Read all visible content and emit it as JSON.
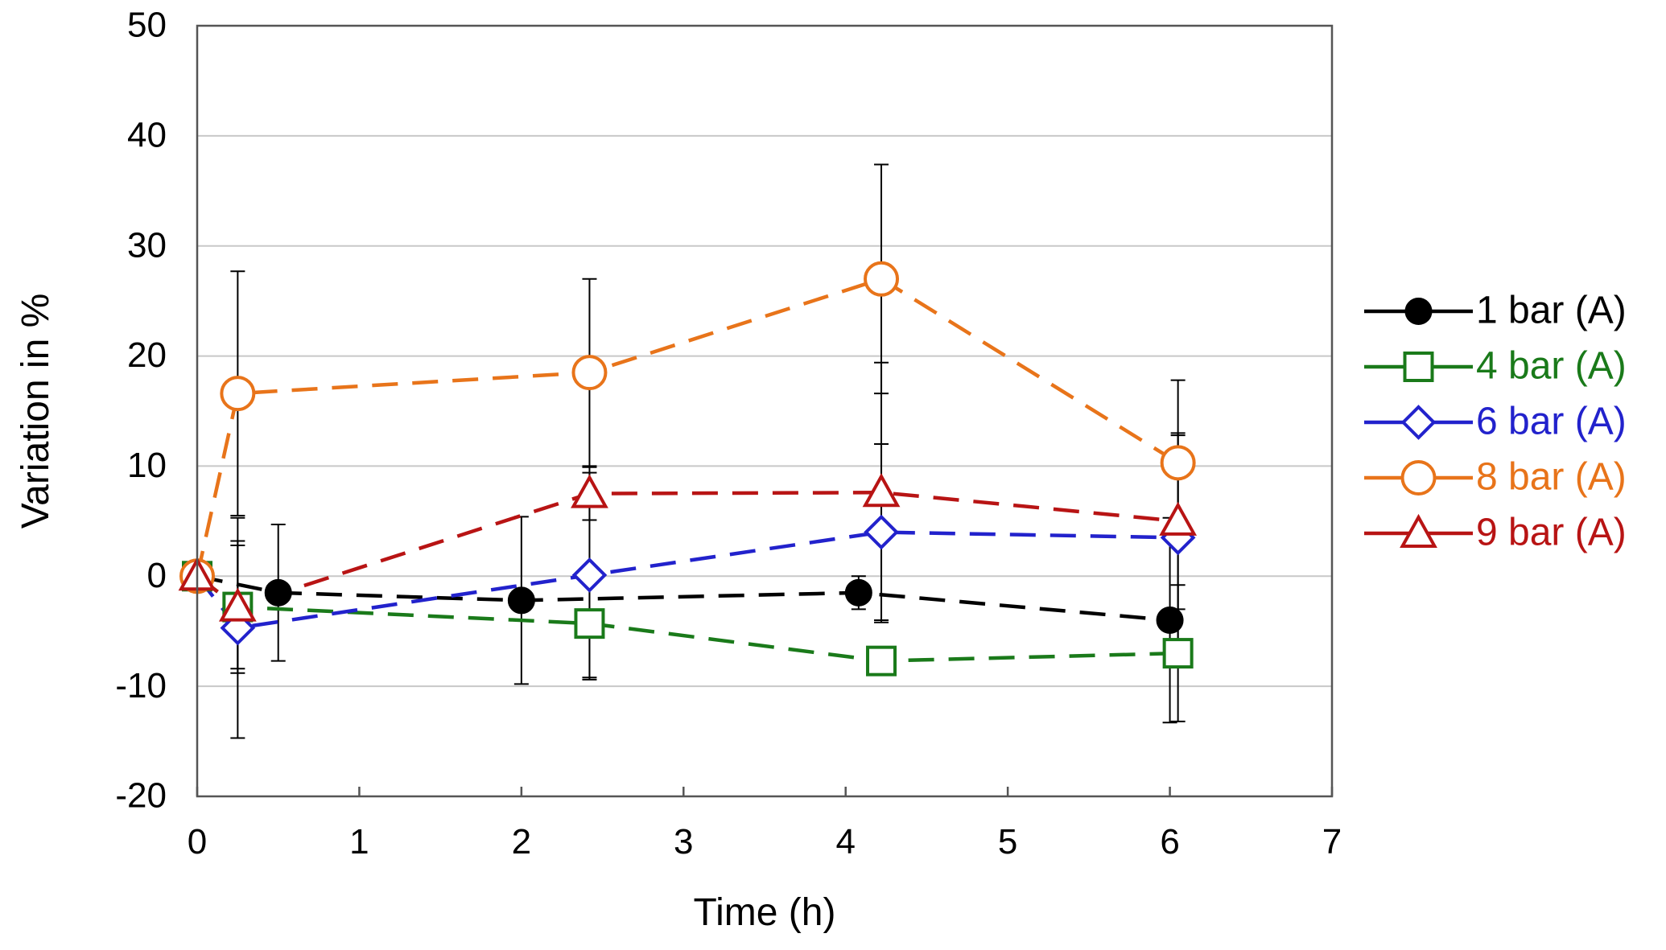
{
  "chart_data": {
    "type": "line",
    "title": "",
    "xlabel": "Time (h)",
    "ylabel": "Variation in %",
    "xlim": [
      0,
      7
    ],
    "ylim": [
      -20,
      50
    ],
    "xticks": [
      0,
      1,
      2,
      3,
      4,
      5,
      6,
      7
    ],
    "yticks": [
      -20,
      -10,
      0,
      10,
      20,
      30,
      40,
      50
    ],
    "grid": "horizontal",
    "legend_position": "right",
    "series": [
      {
        "name": "1 bar (A)",
        "color": "#000000",
        "marker": "circle-filled",
        "x": [
          0,
          0.5,
          2.0,
          4.08,
          6.0
        ],
        "y": [
          0,
          -1.5,
          -2.2,
          -1.5,
          -4.0
        ],
        "err": [
          0,
          6.2,
          7.6,
          1.5,
          9.3
        ]
      },
      {
        "name": "4 bar (A)",
        "color": "#1a7a1a",
        "marker": "square-open",
        "x": [
          0,
          0.25,
          2.42,
          4.22,
          6.05
        ],
        "y": [
          0,
          -2.8,
          -4.3,
          -7.7,
          -7.0
        ],
        "err": [
          0,
          5.6,
          5.1,
          1.2,
          6.2
        ]
      },
      {
        "name": "6 bar (A)",
        "color": "#2222cc",
        "marker": "diamond-open",
        "x": [
          0,
          0.25,
          2.42,
          4.22,
          6.05
        ],
        "y": [
          0,
          -4.7,
          0.1,
          4.0,
          3.5
        ],
        "err": [
          0,
          10.0,
          9.3,
          8.0,
          9.3
        ]
      },
      {
        "name": "8 bar (A)",
        "color": "#e8741a",
        "marker": "circle-open",
        "x": [
          0,
          0.25,
          2.42,
          4.22,
          6.05
        ],
        "y": [
          0,
          16.6,
          18.5,
          27.0,
          10.3
        ],
        "err": [
          0,
          11.1,
          8.5,
          10.4,
          7.5
        ]
      },
      {
        "name": "9 bar (A)",
        "color": "#b81414",
        "marker": "triangle-open",
        "x": [
          0,
          0.25,
          2.42,
          4.22,
          6.05
        ],
        "y": [
          0,
          -2.8,
          7.5,
          7.6,
          5.0
        ],
        "err": [
          0,
          6.0,
          2.4,
          11.8,
          8.0
        ]
      }
    ]
  }
}
